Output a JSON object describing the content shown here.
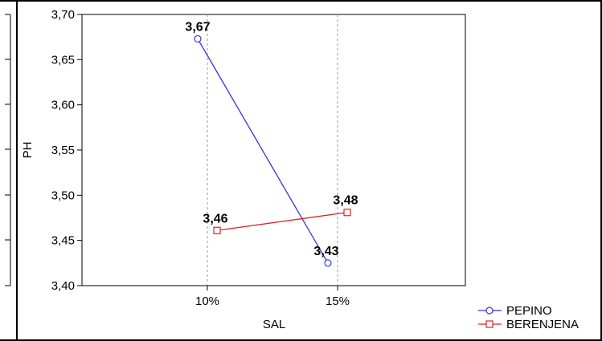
{
  "chart_data": {
    "type": "line",
    "xlabel": "SAL",
    "ylabel": "PH",
    "categories": [
      "10%",
      "15%"
    ],
    "ylim": [
      3.4,
      3.7
    ],
    "yticks": [
      "3,40",
      "3,45",
      "3,50",
      "3,55",
      "3,60",
      "3,65",
      "3,70"
    ],
    "grid": "vertical dashed lines at categories",
    "legend_position": "bottom-right outside plot",
    "series": [
      {
        "name": "PEPINO",
        "color": "#3333dd",
        "marker": "circle",
        "values": [
          3.673,
          3.425
        ],
        "labels": [
          "3,67",
          "3,43"
        ]
      },
      {
        "name": "BERENJENA",
        "color": "#dd2222",
        "marker": "square",
        "values": [
          3.461,
          3.481
        ],
        "labels": [
          "3,46",
          "3,48"
        ]
      }
    ]
  }
}
